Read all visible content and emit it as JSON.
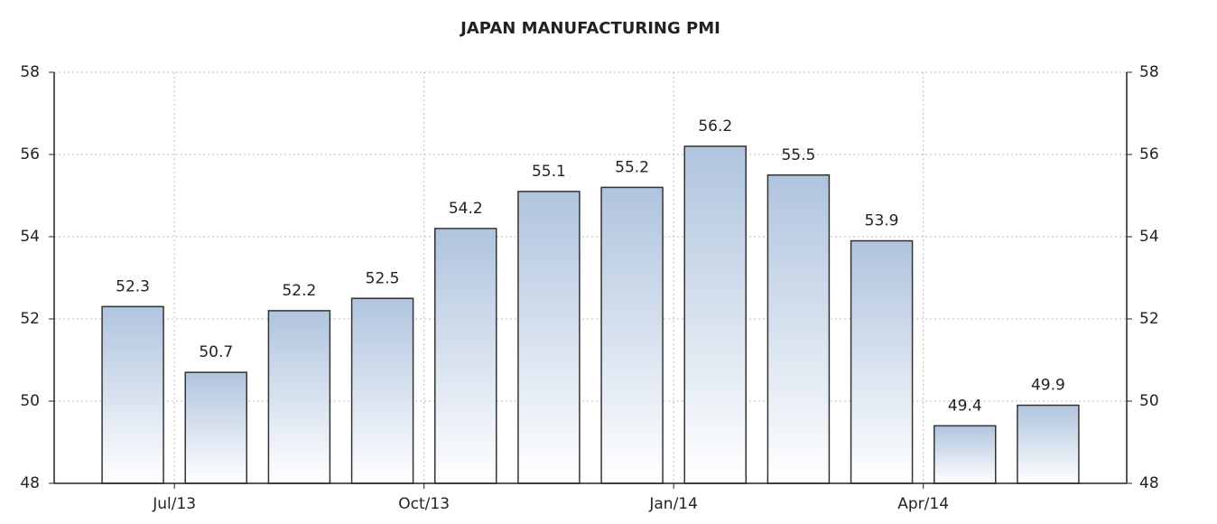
{
  "chart_data": {
    "type": "bar",
    "title": "JAPAN MANUFACTURING PMI",
    "categories": [
      null,
      "Jul/13",
      null,
      null,
      "Oct/13",
      null,
      null,
      "Jan/14",
      null,
      null,
      "Apr/14",
      null
    ],
    "values": [
      52.3,
      50.7,
      52.2,
      52.5,
      54.2,
      55.1,
      55.2,
      56.2,
      55.5,
      53.9,
      49.4,
      49.9
    ],
    "color": "#b0c4de",
    "ylim": [
      48,
      58
    ],
    "yticks": [
      48,
      50,
      52,
      54,
      56,
      58
    ],
    "grid": true
  }
}
